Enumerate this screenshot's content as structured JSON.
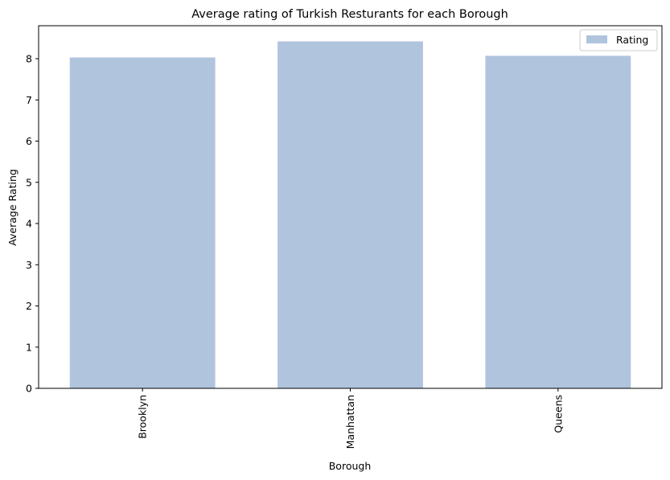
{
  "chart_data": {
    "type": "bar",
    "title": "Average rating of Turkish Resturants for each Borough",
    "xlabel": "Borough",
    "ylabel": "Average Rating",
    "categories": [
      "Brooklyn",
      "Manhattan",
      "Queens"
    ],
    "series": [
      {
        "name": "Rating",
        "values": [
          8.03,
          8.42,
          8.07
        ],
        "color": "#b0c4de"
      }
    ],
    "ylim": [
      0,
      8.8
    ],
    "yticks": [
      0,
      1,
      2,
      3,
      4,
      5,
      6,
      7,
      8
    ],
    "xtick_rotation": "vertical",
    "grid": false,
    "legend": "top-right"
  }
}
